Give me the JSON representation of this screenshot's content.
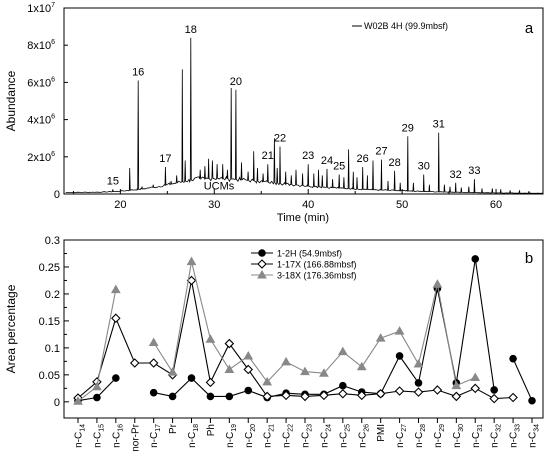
{
  "chart_data": [
    {
      "type": "line",
      "panel_label": "a",
      "legend": [
        "W02B 4H (99.9mbsf)"
      ],
      "legend_position": "top-right",
      "xlabel": "Time (min)",
      "ylabel": "Abundance",
      "xlim": [
        14,
        65
      ],
      "ylim": [
        0,
        10000000
      ],
      "x_ticks": [
        "20",
        "30",
        "40",
        "50",
        "60"
      ],
      "y_tick_labels": [
        "0",
        "2x10",
        "4x10",
        "6x10",
        "8x10",
        "1x10"
      ],
      "y_tick_exponents": [
        "",
        "6",
        "6",
        "6",
        "6",
        "7"
      ],
      "y_tick_values": [
        0,
        2000000,
        4000000,
        6000000,
        8000000,
        10000000
      ],
      "annotations": [
        {
          "text": "UCMs",
          "x": 30.5,
          "y": 350000
        }
      ],
      "series": [
        {
          "name": "W02B 4H (99.9mbsf)",
          "baseline": [
            [
              14,
              80000
            ],
            [
              18,
              100000
            ],
            [
              20,
              150000
            ],
            [
              22,
              250000
            ],
            [
              24,
              400000
            ],
            [
              26,
              600000
            ],
            [
              28,
              800000
            ],
            [
              30,
              850000
            ],
            [
              32,
              800000
            ],
            [
              34,
              720000
            ],
            [
              36,
              620000
            ],
            [
              38,
              520000
            ],
            [
              40,
              430000
            ],
            [
              42,
              360000
            ],
            [
              44,
              300000
            ],
            [
              46,
              250000
            ],
            [
              48,
              210000
            ],
            [
              50,
              170000
            ],
            [
              52,
              140000
            ],
            [
              54,
              110000
            ],
            [
              56,
              90000
            ],
            [
              58,
              70000
            ],
            [
              60,
              60000
            ],
            [
              62,
              50000
            ],
            [
              64,
              40000
            ]
          ],
          "peaks": [
            {
              "x": 19.2,
              "y": 250000,
              "label": "15"
            },
            {
              "x": 21.9,
              "y": 6100000,
              "label": "16"
            },
            {
              "x": 24.8,
              "y": 1450000,
              "label": "17"
            },
            {
              "x": 27.5,
              "y": 8400000,
              "label": "18"
            },
            {
              "x": 32.3,
              "y": 5600000,
              "label": "20"
            },
            {
              "x": 35.7,
              "y": 1600000,
              "label": "21"
            },
            {
              "x": 37.0,
              "y": 2550000,
              "label": "22"
            },
            {
              "x": 40.0,
              "y": 1600000,
              "label": "23"
            },
            {
              "x": 42.0,
              "y": 1350000,
              "label": "24"
            },
            {
              "x": 43.3,
              "y": 1050000,
              "label": "25"
            },
            {
              "x": 45.8,
              "y": 1450000,
              "label": "26"
            },
            {
              "x": 47.8,
              "y": 1850000,
              "label": "27"
            },
            {
              "x": 49.2,
              "y": 1250000,
              "label": "28"
            },
            {
              "x": 50.6,
              "y": 3100000,
              "label": "29"
            },
            {
              "x": 52.3,
              "y": 1050000,
              "label": "30"
            },
            {
              "x": 53.9,
              "y": 3300000,
              "label": "31"
            },
            {
              "x": 55.7,
              "y": 600000,
              "label": "32"
            },
            {
              "x": 57.7,
              "y": 800000,
              "label": "33"
            }
          ],
          "minor_peaks": [
            [
              21.0,
              1400000
            ],
            [
              22.3,
              400000
            ],
            [
              23.5,
              500000
            ],
            [
              25.4,
              700000
            ],
            [
              26.0,
              1000000
            ],
            [
              26.6,
              6700000
            ],
            [
              26.9,
              1800000
            ],
            [
              28.5,
              1300000
            ],
            [
              29.0,
              1500000
            ],
            [
              29.4,
              1900000
            ],
            [
              29.8,
              1800000
            ],
            [
              30.3,
              1600000
            ],
            [
              30.9,
              1600000
            ],
            [
              31.4,
              1300000
            ],
            [
              31.8,
              5700000
            ],
            [
              32.9,
              1700000
            ],
            [
              33.6,
              1200000
            ],
            [
              34.2,
              2300000
            ],
            [
              34.6,
              1400000
            ],
            [
              35.2,
              1100000
            ],
            [
              36.4,
              3000000
            ],
            [
              36.7,
              1400000
            ],
            [
              37.6,
              1200000
            ],
            [
              38.2,
              1000000
            ],
            [
              38.7,
              1300000
            ],
            [
              39.4,
              1100000
            ],
            [
              40.6,
              1100000
            ],
            [
              41.1,
              1300000
            ],
            [
              41.5,
              1000000
            ],
            [
              42.6,
              800000
            ],
            [
              43.8,
              900000
            ],
            [
              44.3,
              2400000
            ],
            [
              44.8,
              1200000
            ],
            [
              45.2,
              900000
            ],
            [
              46.3,
              1000000
            ],
            [
              46.9,
              1800000
            ],
            [
              48.5,
              700000
            ],
            [
              49.8,
              600000
            ],
            [
              51.2,
              600000
            ],
            [
              52.9,
              500000
            ],
            [
              54.5,
              500000
            ],
            [
              55.1,
              400000
            ],
            [
              56.3,
              350000
            ],
            [
              57.1,
              400000
            ],
            [
              58.5,
              300000
            ],
            [
              59.6,
              300000
            ],
            [
              60.5,
              250000
            ],
            [
              61.5,
              200000
            ],
            [
              62.5,
              200000
            ],
            [
              63.5,
              150000
            ]
          ]
        }
      ]
    },
    {
      "type": "line",
      "panel_label": "b",
      "ylabel": "Area percentage",
      "ylim": [
        -0.03,
        0.3
      ],
      "y_ticks": [
        "0",
        "0.05",
        "0.1",
        "0.15",
        "0.2",
        "0.25",
        "0.3"
      ],
      "y_tick_values": [
        0,
        0.05,
        0.1,
        0.15,
        0.2,
        0.25,
        0.3
      ],
      "legend_position": "top-center",
      "categories": [
        {
          "base": "n-C",
          "sub": "14"
        },
        {
          "base": "n-C",
          "sub": "15"
        },
        {
          "base": "n-C",
          "sub": "16"
        },
        {
          "base": "nor-Pr",
          "sub": ""
        },
        {
          "base": "n-C",
          "sub": "17"
        },
        {
          "base": "Pr",
          "sub": ""
        },
        {
          "base": "n-C",
          "sub": "18"
        },
        {
          "base": "Ph",
          "sub": ""
        },
        {
          "base": "n-C",
          "sub": "19"
        },
        {
          "base": "n-C",
          "sub": "20"
        },
        {
          "base": "n-C",
          "sub": "21"
        },
        {
          "base": "n-C",
          "sub": "22"
        },
        {
          "base": "n-C",
          "sub": "23"
        },
        {
          "base": "n-C",
          "sub": "24"
        },
        {
          "base": "n-C",
          "sub": "25"
        },
        {
          "base": "n-C",
          "sub": "26"
        },
        {
          "base": "PMI",
          "sub": ""
        },
        {
          "base": "n-C",
          "sub": "27"
        },
        {
          "base": "n-C",
          "sub": "28"
        },
        {
          "base": "n-C",
          "sub": "29"
        },
        {
          "base": "n-C",
          "sub": "30"
        },
        {
          "base": "n-C",
          "sub": "31"
        },
        {
          "base": "n-C",
          "sub": "32"
        },
        {
          "base": "n-C",
          "sub": "33"
        },
        {
          "base": "n-C",
          "sub": "34"
        }
      ],
      "series": [
        {
          "name": "1-2H (54.9mbsf)",
          "color": "#000000",
          "marker": "circle-filled",
          "segments": [
            [
              [
                0,
                0.002
              ],
              [
                1,
                0.008
              ],
              [
                2,
                0.044
              ]
            ],
            [
              [
                4,
                0.017
              ],
              [
                5,
                0.01
              ],
              [
                6,
                0.044
              ],
              [
                7,
                0.01
              ],
              [
                8,
                0.01
              ],
              [
                9,
                0.021
              ],
              [
                10,
                0.008
              ],
              [
                11,
                0.016
              ],
              [
                12,
                0.014
              ],
              [
                13,
                0.014
              ],
              [
                14,
                0.03
              ],
              [
                15,
                0.018
              ],
              [
                16,
                0.015
              ],
              [
                17,
                0.085
              ],
              [
                18,
                0.035
              ],
              [
                19,
                0.21
              ],
              [
                20,
                0.035
              ],
              [
                21,
                0.265
              ],
              [
                22,
                0.022
              ]
            ],
            [
              [
                23,
                0.08
              ],
              [
                24,
                0.002
              ]
            ]
          ]
        },
        {
          "name": "1-17X (166.88mbsf)",
          "color": "#000000",
          "marker": "diamond-open",
          "segments": [
            [
              [
                0,
                0.007
              ],
              [
                1,
                0.037
              ],
              [
                2,
                0.155
              ],
              [
                3,
                0.072
              ],
              [
                4,
                0.072
              ],
              [
                5,
                0.05
              ],
              [
                6,
                0.225
              ],
              [
                7,
                0.036
              ],
              [
                8,
                0.108
              ],
              [
                9,
                0.06
              ],
              [
                10,
                0.01
              ],
              [
                11,
                0.012
              ],
              [
                12,
                0.01
              ],
              [
                13,
                0.012
              ],
              [
                14,
                0.015
              ],
              [
                15,
                0.012
              ],
              [
                16,
                0.015
              ],
              [
                17,
                0.02
              ],
              [
                18,
                0.018
              ],
              [
                19,
                0.022
              ],
              [
                20,
                0.01
              ],
              [
                21,
                0.025
              ],
              [
                22,
                0.006
              ],
              [
                23,
                0.008
              ]
            ]
          ]
        },
        {
          "name": "3-18X (176.36mbsf)",
          "color": "#888888",
          "marker": "triangle-filled",
          "segments": [
            [
              [
                0,
                0.001
              ],
              [
                1,
                0.028
              ],
              [
                2,
                0.208
              ]
            ],
            [
              [
                4,
                0.11
              ],
              [
                5,
                0.055
              ],
              [
                6,
                0.26
              ],
              [
                7,
                0.116
              ],
              [
                8,
                0.06
              ],
              [
                9,
                0.085
              ],
              [
                10,
                0.037
              ],
              [
                11,
                0.074
              ],
              [
                12,
                0.056
              ],
              [
                13,
                0.053
              ],
              [
                14,
                0.093
              ],
              [
                15,
                0.065
              ],
              [
                16,
                0.118
              ],
              [
                17,
                0.131
              ],
              [
                18,
                0.07
              ],
              [
                19,
                0.218
              ],
              [
                20,
                0.03
              ],
              [
                21,
                0.045
              ]
            ]
          ]
        }
      ]
    }
  ]
}
